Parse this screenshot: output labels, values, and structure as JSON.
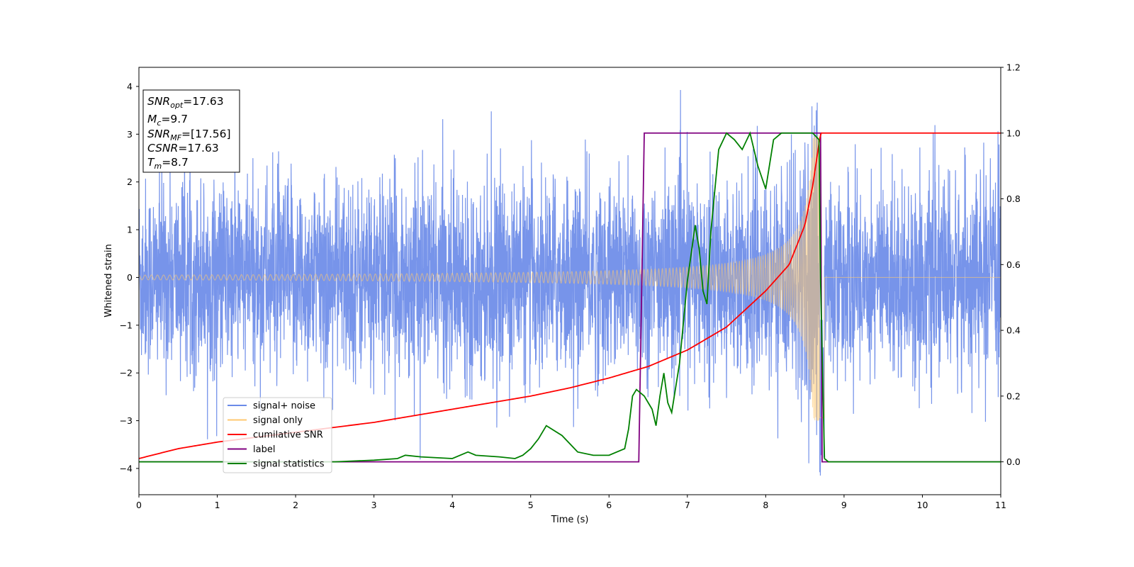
{
  "chart_data": {
    "type": "line",
    "xlabel": "Time (s)",
    "ylabel": "Whitened strain",
    "xlim": [
      0,
      11
    ],
    "ylim_left": [
      -4.55,
      4.4
    ],
    "ylim_right": [
      -0.1,
      1.2
    ],
    "x_ticks": [
      "0",
      "1",
      "2",
      "3",
      "4",
      "5",
      "6",
      "7",
      "8",
      "9",
      "10",
      "11"
    ],
    "y_ticks_left": [
      "−4",
      "−3",
      "−2",
      "−1",
      "0",
      "1",
      "2",
      "3",
      "4"
    ],
    "y_ticks_right": [
      "0.0",
      "0.2",
      "0.4",
      "0.6",
      "0.8",
      "1.0",
      "1.2"
    ],
    "grid": false,
    "legend": {
      "position": "lower-left",
      "entries": [
        {
          "label": "signal+ noise",
          "color": "#6b8be8"
        },
        {
          "label": "signal only",
          "color": "#ffc870"
        },
        {
          "label": "cumilative SNR",
          "color": "#ff0000"
        },
        {
          "label": "label",
          "color": "#800080"
        },
        {
          "label": "signal statistics",
          "color": "#008000"
        }
      ]
    },
    "info_box": {
      "lines": [
        {
          "main": "SNR",
          "sub": "opt",
          "value": "=17.63"
        },
        {
          "main": "M",
          "sub": "c",
          "value": "=9.7"
        },
        {
          "main": "SNR",
          "sub": "MF",
          "value": "=[17.56]"
        },
        {
          "main": "CSNR",
          "sub": "",
          "value": "=17.63"
        },
        {
          "main": "T",
          "sub": "m",
          "value": "=8.7"
        }
      ]
    },
    "series": [
      {
        "name": "signal+ noise",
        "axis": "left",
        "color": "#6b8be8",
        "description_values": {
          "noise_std": 1.0,
          "typical_range": [
            -2.5,
            2.5
          ],
          "max_peaks": [
            4.0,
            -4.1
          ]
        }
      },
      {
        "name": "signal only",
        "axis": "left",
        "color": "#ffc870",
        "chirp": {
          "start_amplitude": 0.05,
          "peak_amplitude": 3.0,
          "merger_time": 8.7,
          "start_time": 0,
          "zero_after": 8.75
        }
      },
      {
        "name": "cumilative SNR",
        "axis": "right",
        "color": "#ff0000",
        "x": [
          0,
          0.5,
          1,
          1.5,
          2,
          2.5,
          3,
          3.5,
          4,
          4.5,
          5,
          5.5,
          6,
          6.5,
          7,
          7.5,
          8,
          8.3,
          8.5,
          8.6,
          8.7,
          11
        ],
        "y": [
          0.01,
          0.04,
          0.06,
          0.075,
          0.09,
          0.105,
          0.12,
          0.14,
          0.16,
          0.18,
          0.2,
          0.225,
          0.255,
          0.29,
          0.34,
          0.41,
          0.52,
          0.6,
          0.72,
          0.84,
          1.0,
          1.0
        ]
      },
      {
        "name": "label",
        "axis": "right",
        "color": "#800080",
        "x": [
          0,
          6.38,
          6.45,
          8.7,
          8.72,
          8.75,
          11
        ],
        "y": [
          0.0,
          0.0,
          1.0,
          1.0,
          0.0,
          0.0,
          0.0
        ]
      },
      {
        "name": "signal statistics",
        "axis": "right",
        "color": "#008000",
        "x": [
          0,
          0.5,
          1,
          1.5,
          2,
          2.5,
          3,
          3.3,
          3.4,
          3.6,
          4,
          4.2,
          4.3,
          4.6,
          4.8,
          4.9,
          5,
          5.1,
          5.2,
          5.4,
          5.6,
          5.8,
          6.0,
          6.2,
          6.25,
          6.3,
          6.35,
          6.4,
          6.45,
          6.5,
          6.55,
          6.6,
          6.65,
          6.7,
          6.75,
          6.8,
          6.9,
          7.0,
          7.1,
          7.15,
          7.2,
          7.25,
          7.3,
          7.4,
          7.5,
          7.6,
          7.7,
          7.8,
          7.9,
          8.0,
          8.1,
          8.2,
          8.3,
          8.4,
          8.5,
          8.6,
          8.68,
          8.7,
          8.75,
          8.8,
          9,
          10,
          11
        ],
        "y": [
          0.0,
          0.0,
          0.0,
          0.0,
          0.0,
          0.0,
          0.005,
          0.01,
          0.02,
          0.015,
          0.01,
          0.03,
          0.02,
          0.015,
          0.01,
          0.02,
          0.04,
          0.07,
          0.11,
          0.08,
          0.03,
          0.02,
          0.02,
          0.04,
          0.1,
          0.2,
          0.22,
          0.21,
          0.2,
          0.18,
          0.16,
          0.11,
          0.2,
          0.27,
          0.18,
          0.15,
          0.3,
          0.55,
          0.72,
          0.65,
          0.52,
          0.48,
          0.7,
          0.95,
          1.0,
          0.98,
          0.95,
          1.0,
          0.9,
          0.83,
          0.98,
          1.0,
          1.0,
          1.0,
          1.0,
          1.0,
          0.98,
          0.55,
          0.01,
          0.0,
          0.0,
          0.0,
          0.0
        ]
      }
    ]
  }
}
